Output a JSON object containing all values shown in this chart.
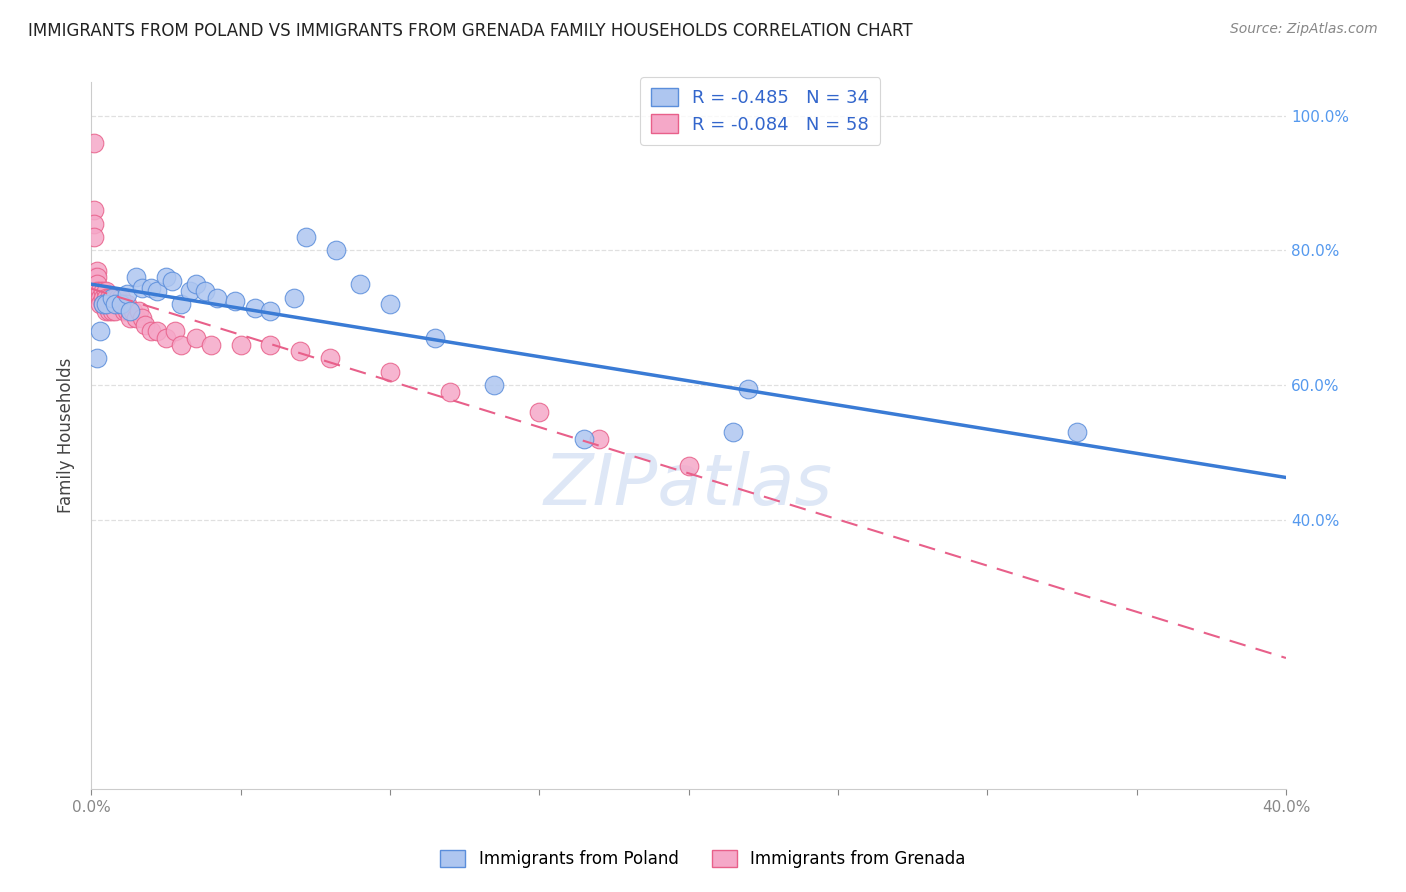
{
  "title": "IMMIGRANTS FROM POLAND VS IMMIGRANTS FROM GRENADA FAMILY HOUSEHOLDS CORRELATION CHART",
  "source": "Source: ZipAtlas.com",
  "ylabel": "Family Households",
  "xlim": [
    0.0,
    0.4
  ],
  "ylim": [
    0.0,
    1.05
  ],
  "poland_R": -0.485,
  "poland_N": 34,
  "grenada_R": -0.084,
  "grenada_N": 58,
  "poland_color": "#aec6f0",
  "grenada_color": "#f5a8c8",
  "poland_edge_color": "#5b8edb",
  "grenada_edge_color": "#e8608a",
  "poland_line_color": "#3a7bd5",
  "grenada_line_color": "#e8608a",
  "legend_label_poland": "Immigrants from Poland",
  "legend_label_grenada": "Immigrants from Grenada",
  "poland_x": [
    0.002,
    0.003,
    0.004,
    0.005,
    0.007,
    0.008,
    0.01,
    0.012,
    0.013,
    0.015,
    0.017,
    0.02,
    0.022,
    0.025,
    0.027,
    0.03,
    0.033,
    0.035,
    0.038,
    0.042,
    0.048,
    0.055,
    0.06,
    0.068,
    0.072,
    0.082,
    0.09,
    0.1,
    0.115,
    0.135,
    0.165,
    0.215,
    0.22,
    0.33
  ],
  "poland_y": [
    0.64,
    0.68,
    0.72,
    0.72,
    0.73,
    0.72,
    0.72,
    0.735,
    0.71,
    0.76,
    0.745,
    0.745,
    0.74,
    0.76,
    0.755,
    0.72,
    0.74,
    0.75,
    0.74,
    0.73,
    0.725,
    0.715,
    0.71,
    0.73,
    0.82,
    0.8,
    0.75,
    0.72,
    0.67,
    0.6,
    0.52,
    0.53,
    0.595,
    0.53
  ],
  "grenada_x": [
    0.001,
    0.001,
    0.001,
    0.001,
    0.001,
    0.002,
    0.002,
    0.002,
    0.002,
    0.003,
    0.003,
    0.003,
    0.004,
    0.004,
    0.004,
    0.005,
    0.005,
    0.005,
    0.005,
    0.006,
    0.006,
    0.006,
    0.007,
    0.007,
    0.007,
    0.008,
    0.008,
    0.008,
    0.009,
    0.009,
    0.01,
    0.01,
    0.011,
    0.011,
    0.012,
    0.012,
    0.013,
    0.014,
    0.015,
    0.016,
    0.017,
    0.018,
    0.02,
    0.022,
    0.025,
    0.028,
    0.03,
    0.035,
    0.04,
    0.05,
    0.06,
    0.07,
    0.08,
    0.1,
    0.12,
    0.15,
    0.17,
    0.2
  ],
  "grenada_y": [
    0.96,
    0.86,
    0.84,
    0.82,
    0.76,
    0.77,
    0.76,
    0.75,
    0.74,
    0.74,
    0.73,
    0.72,
    0.74,
    0.73,
    0.72,
    0.74,
    0.73,
    0.72,
    0.71,
    0.73,
    0.72,
    0.71,
    0.73,
    0.72,
    0.71,
    0.73,
    0.72,
    0.71,
    0.73,
    0.72,
    0.73,
    0.72,
    0.72,
    0.71,
    0.72,
    0.71,
    0.7,
    0.71,
    0.7,
    0.71,
    0.7,
    0.69,
    0.68,
    0.68,
    0.67,
    0.68,
    0.66,
    0.67,
    0.66,
    0.66,
    0.66,
    0.65,
    0.64,
    0.62,
    0.59,
    0.56,
    0.52,
    0.48
  ],
  "y_ticks": [
    0.4,
    0.6,
    0.8,
    1.0
  ],
  "y_tick_labels": [
    "40.0%",
    "60.0%",
    "80.0%",
    "100.0%"
  ],
  "watermark": "ZIPatlas",
  "watermark_color": "#c8d8f0",
  "grid_color": "#e0e0e0",
  "title_fontsize": 12,
  "source_fontsize": 10,
  "tick_fontsize": 11,
  "right_tick_color": "#5599ee"
}
